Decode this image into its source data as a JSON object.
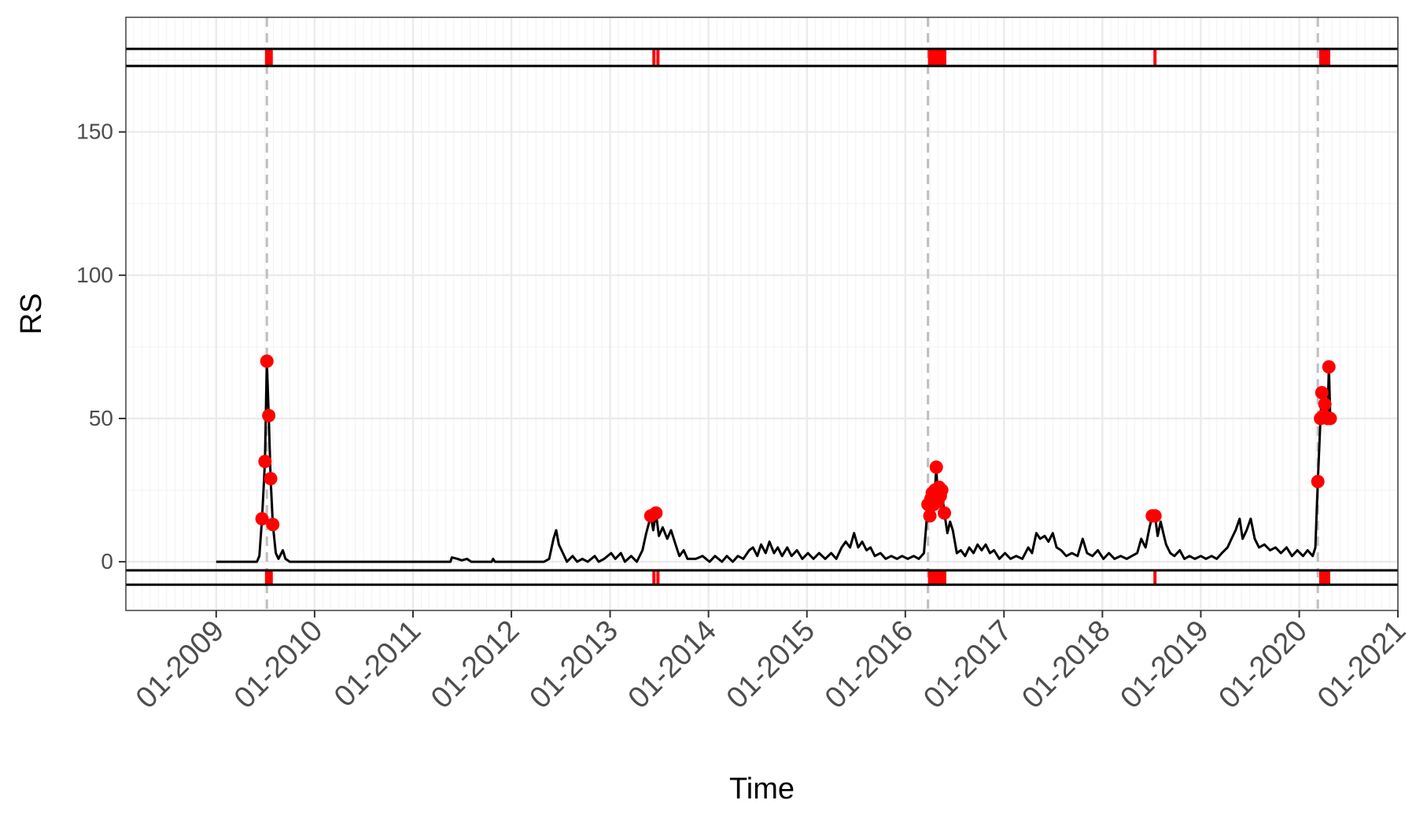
{
  "chart_data": {
    "type": "line",
    "xlabel": "Time",
    "ylabel": "RS",
    "xlim": [
      "2008-02-01",
      "2021-01-01"
    ],
    "ylim": [
      -17,
      190
    ],
    "y_ticks": [
      0,
      50,
      100,
      150
    ],
    "x_ticks": [
      "2009-01-01",
      "2010-01-01",
      "2011-01-01",
      "2012-01-01",
      "2013-01-01",
      "2014-01-01",
      "2015-01-01",
      "2016-01-01",
      "2017-01-01",
      "2018-01-01",
      "2019-01-01",
      "2020-01-01",
      "2021-01-01"
    ],
    "x_tick_labels": [
      "01-2009",
      "01-2010",
      "01-2011",
      "01-2012",
      "01-2013",
      "01-2014",
      "01-2015",
      "01-2016",
      "01-2017",
      "01-2018",
      "01-2019",
      "01-2020",
      "01-2021"
    ],
    "grid": true,
    "line_color": "#000000",
    "point_color": "#ff0000",
    "vline_color": "#bfbfbf",
    "series": [
      {
        "values": [
          [
            "2009-01-01",
            0
          ],
          [
            "2009-06-01",
            0
          ],
          [
            "2009-06-10",
            2
          ],
          [
            "2009-06-20",
            15
          ],
          [
            "2009-07-01",
            35
          ],
          [
            "2009-07-08",
            70
          ],
          [
            "2009-07-15",
            51
          ],
          [
            "2009-07-22",
            29
          ],
          [
            "2009-07-30",
            13
          ],
          [
            "2009-08-10",
            3
          ],
          [
            "2009-08-20",
            1
          ],
          [
            "2009-09-05",
            4
          ],
          [
            "2009-09-15",
            1
          ],
          [
            "2009-10-01",
            0
          ],
          [
            "2011-05-20",
            0
          ],
          [
            "2011-05-25",
            1.5
          ],
          [
            "2011-06-15",
            1
          ],
          [
            "2011-07-01",
            0.5
          ],
          [
            "2011-07-20",
            1
          ],
          [
            "2011-08-05",
            0
          ],
          [
            "2011-10-20",
            0
          ],
          [
            "2011-10-25",
            1
          ],
          [
            "2011-11-01",
            0
          ],
          [
            "2012-05-01",
            0
          ],
          [
            "2012-05-20",
            1
          ],
          [
            "2012-06-05",
            8
          ],
          [
            "2012-06-15",
            11
          ],
          [
            "2012-06-25",
            6
          ],
          [
            "2012-07-10",
            3
          ],
          [
            "2012-07-25",
            0
          ],
          [
            "2012-08-15",
            2
          ],
          [
            "2012-09-01",
            0
          ],
          [
            "2012-09-20",
            1
          ],
          [
            "2012-10-10",
            0
          ],
          [
            "2012-11-05",
            2
          ],
          [
            "2012-11-20",
            0
          ],
          [
            "2012-12-10",
            1
          ],
          [
            "2013-01-05",
            3
          ],
          [
            "2013-01-20",
            1
          ],
          [
            "2013-02-10",
            3
          ],
          [
            "2013-02-25",
            0
          ],
          [
            "2013-03-20",
            2
          ],
          [
            "2013-04-10",
            0
          ],
          [
            "2013-05-01",
            4
          ],
          [
            "2013-05-15",
            10
          ],
          [
            "2013-06-01",
            16
          ],
          [
            "2013-06-10",
            11
          ],
          [
            "2013-06-20",
            17
          ],
          [
            "2013-07-01",
            9
          ],
          [
            "2013-07-15",
            12
          ],
          [
            "2013-08-01",
            8
          ],
          [
            "2013-08-15",
            11
          ],
          [
            "2013-09-01",
            6
          ],
          [
            "2013-09-15",
            2
          ],
          [
            "2013-10-01",
            4
          ],
          [
            "2013-10-15",
            1
          ],
          [
            "2013-11-15",
            1
          ],
          [
            "2013-12-10",
            2
          ],
          [
            "2014-01-05",
            0
          ],
          [
            "2014-01-25",
            2
          ],
          [
            "2014-02-20",
            0
          ],
          [
            "2014-03-10",
            2
          ],
          [
            "2014-04-01",
            0
          ],
          [
            "2014-04-20",
            2
          ],
          [
            "2014-05-10",
            1
          ],
          [
            "2014-06-01",
            4
          ],
          [
            "2014-06-15",
            5
          ],
          [
            "2014-07-01",
            2
          ],
          [
            "2014-07-15",
            6
          ],
          [
            "2014-08-01",
            3
          ],
          [
            "2014-08-15",
            7
          ],
          [
            "2014-09-01",
            3
          ],
          [
            "2014-09-15",
            5
          ],
          [
            "2014-10-01",
            2
          ],
          [
            "2014-10-20",
            5
          ],
          [
            "2014-11-05",
            2
          ],
          [
            "2014-11-25",
            4
          ],
          [
            "2014-12-15",
            1
          ],
          [
            "2015-01-05",
            3
          ],
          [
            "2015-01-25",
            1
          ],
          [
            "2015-02-15",
            3
          ],
          [
            "2015-03-10",
            1
          ],
          [
            "2015-04-01",
            3
          ],
          [
            "2015-04-20",
            1
          ],
          [
            "2015-05-10",
            5
          ],
          [
            "2015-05-25",
            7
          ],
          [
            "2015-06-10",
            5
          ],
          [
            "2015-06-25",
            10
          ],
          [
            "2015-07-10",
            5
          ],
          [
            "2015-07-25",
            7
          ],
          [
            "2015-08-10",
            4
          ],
          [
            "2015-08-25",
            5
          ],
          [
            "2015-09-10",
            2
          ],
          [
            "2015-10-01",
            3
          ],
          [
            "2015-10-20",
            1
          ],
          [
            "2015-11-10",
            2
          ],
          [
            "2015-12-01",
            1
          ],
          [
            "2015-12-20",
            2
          ],
          [
            "2016-01-10",
            1
          ],
          [
            "2016-02-01",
            2
          ],
          [
            "2016-02-20",
            1
          ],
          [
            "2016-03-10",
            3
          ],
          [
            "2016-03-25",
            20
          ],
          [
            "2016-04-01",
            16
          ],
          [
            "2016-04-05",
            22
          ],
          [
            "2016-04-10",
            24
          ],
          [
            "2016-04-15",
            20
          ],
          [
            "2016-04-20",
            25
          ],
          [
            "2016-04-25",
            33
          ],
          [
            "2016-05-01",
            21
          ],
          [
            "2016-05-05",
            26
          ],
          [
            "2016-05-10",
            23
          ],
          [
            "2016-05-15",
            25
          ],
          [
            "2016-05-25",
            17
          ],
          [
            "2016-06-05",
            10
          ],
          [
            "2016-06-15",
            14
          ],
          [
            "2016-06-25",
            11
          ],
          [
            "2016-07-10",
            3
          ],
          [
            "2016-07-25",
            4
          ],
          [
            "2016-08-10",
            2
          ],
          [
            "2016-08-25",
            5
          ],
          [
            "2016-09-10",
            3
          ],
          [
            "2016-09-25",
            6
          ],
          [
            "2016-10-10",
            4
          ],
          [
            "2016-10-25",
            6
          ],
          [
            "2016-11-10",
            3
          ],
          [
            "2016-11-25",
            4
          ],
          [
            "2016-12-15",
            1
          ],
          [
            "2017-01-05",
            3
          ],
          [
            "2017-01-25",
            1
          ],
          [
            "2017-02-15",
            2
          ],
          [
            "2017-03-10",
            1
          ],
          [
            "2017-04-01",
            5
          ],
          [
            "2017-04-15",
            3
          ],
          [
            "2017-05-01",
            10
          ],
          [
            "2017-05-15",
            8
          ],
          [
            "2017-06-01",
            9
          ],
          [
            "2017-06-15",
            7
          ],
          [
            "2017-07-01",
            10
          ],
          [
            "2017-07-15",
            5
          ],
          [
            "2017-08-01",
            4
          ],
          [
            "2017-08-20",
            2
          ],
          [
            "2017-09-10",
            3
          ],
          [
            "2017-10-01",
            2
          ],
          [
            "2017-10-20",
            8
          ],
          [
            "2017-11-05",
            3
          ],
          [
            "2017-11-25",
            2
          ],
          [
            "2017-12-15",
            4
          ],
          [
            "2018-01-05",
            1
          ],
          [
            "2018-01-25",
            3
          ],
          [
            "2018-02-15",
            1
          ],
          [
            "2018-03-10",
            2
          ],
          [
            "2018-04-01",
            1
          ],
          [
            "2018-04-20",
            2
          ],
          [
            "2018-05-10",
            3
          ],
          [
            "2018-05-25",
            8
          ],
          [
            "2018-06-10",
            5
          ],
          [
            "2018-06-25",
            12
          ],
          [
            "2018-07-05",
            16
          ],
          [
            "2018-07-15",
            16
          ],
          [
            "2018-07-25",
            9
          ],
          [
            "2018-08-05",
            14
          ],
          [
            "2018-08-15",
            10
          ],
          [
            "2018-08-25",
            6
          ],
          [
            "2018-09-10",
            3
          ],
          [
            "2018-09-25",
            2
          ],
          [
            "2018-10-15",
            4
          ],
          [
            "2018-11-01",
            1
          ],
          [
            "2018-11-20",
            2
          ],
          [
            "2018-12-10",
            1
          ],
          [
            "2019-01-01",
            2
          ],
          [
            "2019-01-20",
            1
          ],
          [
            "2019-02-10",
            2
          ],
          [
            "2019-03-01",
            1
          ],
          [
            "2019-03-20",
            3
          ],
          [
            "2019-04-10",
            5
          ],
          [
            "2019-04-25",
            8
          ],
          [
            "2019-05-10",
            11
          ],
          [
            "2019-05-25",
            15
          ],
          [
            "2019-06-05",
            8
          ],
          [
            "2019-06-20",
            11
          ],
          [
            "2019-07-05",
            15
          ],
          [
            "2019-07-20",
            8
          ],
          [
            "2019-08-05",
            5
          ],
          [
            "2019-08-25",
            6
          ],
          [
            "2019-09-15",
            4
          ],
          [
            "2019-10-05",
            5
          ],
          [
            "2019-10-25",
            3
          ],
          [
            "2019-11-15",
            5
          ],
          [
            "2019-12-05",
            2
          ],
          [
            "2019-12-25",
            4
          ],
          [
            "2020-01-15",
            2
          ],
          [
            "2020-02-01",
            4
          ],
          [
            "2020-02-20",
            2
          ],
          [
            "2020-03-01",
            5
          ],
          [
            "2020-03-10",
            28
          ],
          [
            "2020-03-20",
            50
          ],
          [
            "2020-03-25",
            59
          ],
          [
            "2020-04-01",
            51
          ],
          [
            "2020-04-05",
            55
          ],
          [
            "2020-04-15",
            50
          ],
          [
            "2020-04-20",
            68
          ],
          [
            "2020-04-25",
            50
          ]
        ]
      }
    ],
    "red_points": [
      [
        "2009-06-20",
        15
      ],
      [
        "2009-07-01",
        35
      ],
      [
        "2009-07-08",
        70
      ],
      [
        "2009-07-15",
        51
      ],
      [
        "2009-07-22",
        29
      ],
      [
        "2009-07-30",
        13
      ],
      [
        "2013-06-01",
        16
      ],
      [
        "2013-06-20",
        17
      ],
      [
        "2016-03-25",
        20
      ],
      [
        "2016-04-01",
        16
      ],
      [
        "2016-04-05",
        22
      ],
      [
        "2016-04-10",
        24
      ],
      [
        "2016-04-15",
        20
      ],
      [
        "2016-04-20",
        25
      ],
      [
        "2016-04-25",
        33
      ],
      [
        "2016-05-01",
        21
      ],
      [
        "2016-05-05",
        26
      ],
      [
        "2016-05-10",
        23
      ],
      [
        "2016-05-15",
        25
      ],
      [
        "2016-05-25",
        17
      ],
      [
        "2018-07-05",
        16
      ],
      [
        "2018-07-15",
        16
      ],
      [
        "2020-03-10",
        28
      ],
      [
        "2020-03-20",
        50
      ],
      [
        "2020-03-25",
        59
      ],
      [
        "2020-04-01",
        51
      ],
      [
        "2020-04-05",
        55
      ],
      [
        "2020-04-15",
        50
      ],
      [
        "2020-04-20",
        68
      ],
      [
        "2020-04-25",
        50
      ]
    ],
    "vertical_dashed_lines": [
      "2009-07-08",
      "2016-03-25",
      "2020-03-10"
    ],
    "rug_marks": [
      [
        "2009-07-01",
        "2009-07-30"
      ],
      [
        "2013-06-10",
        "2013-06-15"
      ],
      [
        "2013-06-25",
        "2013-06-30"
      ],
      [
        "2016-03-25",
        "2016-06-01"
      ],
      [
        "2018-07-10",
        "2018-07-20"
      ],
      [
        "2020-03-15",
        "2020-04-25"
      ]
    ],
    "top_band_lines": [
      179,
      173
    ],
    "bottom_band_lines": [
      -3,
      -8
    ]
  }
}
